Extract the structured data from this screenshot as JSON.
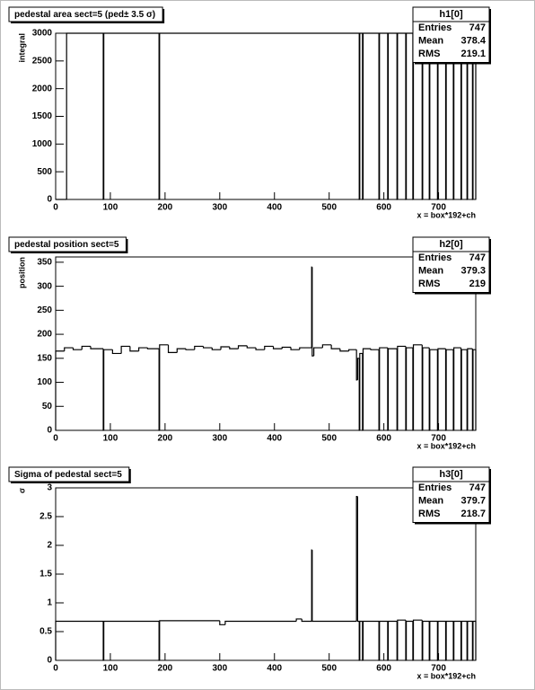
{
  "chart_data": [
    {
      "type": "histogram",
      "title": "pedestal area sect=5 (ped± 3.5 σ)",
      "ylabel": "integral",
      "xlabel": "x = box*192+ch",
      "color": "#000000",
      "bins": [
        0,
        20,
        87,
        88,
        189,
        190,
        555,
        556,
        561,
        562,
        591,
        592,
        607,
        608,
        624,
        625,
        640,
        641,
        653,
        654,
        670,
        671,
        683,
        684,
        698,
        699,
        713,
        714,
        727,
        728,
        741,
        742,
        752,
        753,
        762,
        763,
        768
      ],
      "values": [
        0,
        3000,
        0,
        3000,
        0,
        3000,
        0,
        3000,
        0,
        3000,
        0,
        3000,
        0,
        3000,
        0,
        3000,
        0,
        3000,
        0,
        3000,
        0,
        3000,
        0,
        3000,
        0,
        3000,
        0,
        3000,
        0,
        3000,
        0,
        3000,
        0,
        3000,
        0,
        3000
      ],
      "xlim": [
        0,
        768
      ],
      "ylim": [
        0,
        3000
      ],
      "xticks": [
        0,
        100,
        200,
        300,
        400,
        500,
        600,
        700
      ],
      "yticks": [
        0,
        500,
        1000,
        1500,
        2000,
        2500,
        3000
      ],
      "stats": {
        "title": "h1[0]",
        "rows": [
          [
            "Entries",
            747
          ],
          [
            "Mean",
            378.4
          ],
          [
            "RMS",
            219.1
          ]
        ]
      }
    },
    {
      "type": "histogram",
      "title": "pedestal position sect=5",
      "ylabel": "position",
      "xlabel": "x = box*192+ch",
      "color": "#000000",
      "bins": [
        0,
        16,
        32,
        48,
        64,
        87,
        88,
        104,
        120,
        136,
        152,
        168,
        189,
        190,
        206,
        222,
        238,
        254,
        270,
        286,
        302,
        318,
        334,
        350,
        366,
        382,
        398,
        414,
        430,
        446,
        468,
        469,
        472,
        488,
        504,
        520,
        536,
        550,
        552,
        555,
        556,
        561,
        562,
        576,
        591,
        592,
        607,
        608,
        624,
        625,
        640,
        641,
        653,
        654,
        670,
        671,
        683,
        684,
        698,
        699,
        713,
        714,
        727,
        728,
        741,
        742,
        752,
        753,
        762,
        763,
        768
      ],
      "values": [
        165,
        172,
        168,
        175,
        170,
        0,
        168,
        160,
        175,
        165,
        172,
        170,
        0,
        178,
        162,
        170,
        168,
        175,
        172,
        168,
        174,
        170,
        176,
        172,
        168,
        175,
        170,
        173,
        168,
        172,
        340,
        155,
        172,
        178,
        170,
        165,
        168,
        105,
        150,
        0,
        160,
        0,
        170,
        168,
        0,
        172,
        0,
        170,
        0,
        175,
        0,
        172,
        0,
        178,
        0,
        172,
        0,
        168,
        0,
        170,
        0,
        168,
        0,
        172,
        0,
        168,
        0,
        170,
        0,
        168
      ],
      "xlim": [
        0,
        768
      ],
      "ylim": [
        0,
        361
      ],
      "xticks": [
        0,
        100,
        200,
        300,
        400,
        500,
        600,
        700
      ],
      "yticks": [
        0,
        50,
        100,
        150,
        200,
        250,
        300,
        350
      ],
      "stats": {
        "title": "h2[0]",
        "rows": [
          [
            "Entries",
            747
          ],
          [
            "Mean",
            379.3
          ],
          [
            "RMS",
            219
          ]
        ]
      }
    },
    {
      "type": "histogram",
      "title": "Sigma of pedestal sect=5",
      "ylabel": "σ",
      "xlabel": "x = box*192+ch",
      "color": "#000000",
      "bins": [
        0,
        87,
        88,
        189,
        190,
        300,
        310,
        440,
        450,
        468,
        469,
        550,
        552,
        555,
        556,
        561,
        562,
        591,
        592,
        607,
        608,
        624,
        625,
        640,
        641,
        653,
        654,
        670,
        671,
        683,
        684,
        698,
        699,
        713,
        714,
        727,
        728,
        741,
        742,
        752,
        753,
        762,
        763,
        768
      ],
      "values": [
        0.68,
        0,
        0.68,
        0,
        0.69,
        0.62,
        0.68,
        0.72,
        0.68,
        1.92,
        0.68,
        2.85,
        0.68,
        0,
        0.68,
        0,
        0.68,
        0,
        0.68,
        0,
        0.68,
        0,
        0.7,
        0,
        0.68,
        0,
        0.7,
        0,
        0.68,
        0,
        0.68,
        0,
        0.68,
        0,
        0.68,
        0,
        0.68,
        0,
        0.68,
        0,
        0.68,
        0,
        0.68
      ],
      "xlim": [
        0,
        768
      ],
      "ylim": [
        0,
        3
      ],
      "xticks": [
        0,
        100,
        200,
        300,
        400,
        500,
        600,
        700
      ],
      "yticks": [
        0,
        0.5,
        1,
        1.5,
        2,
        2.5,
        3
      ],
      "stats": {
        "title": "h3[0]",
        "rows": [
          [
            "Entries",
            747
          ],
          [
            "Mean",
            379.7
          ],
          [
            "RMS",
            218.7
          ]
        ]
      }
    }
  ]
}
